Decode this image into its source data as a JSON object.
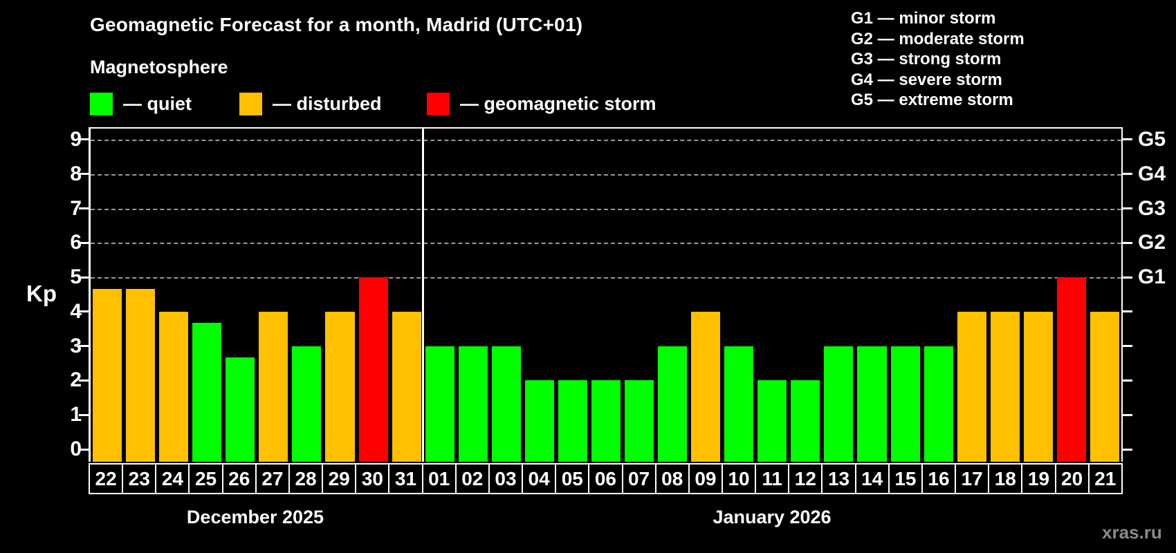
{
  "title": "Geomagnetic Forecast for a month, Madrid (UTC+01)",
  "subtitle": "Magnetosphere",
  "legend": {
    "items": [
      {
        "key": "quiet",
        "label": "— quiet",
        "color": "#00ff00"
      },
      {
        "key": "disturbed",
        "label": "— disturbed",
        "color": "#ffc000"
      },
      {
        "key": "storm",
        "label": "— geomagnetic storm",
        "color": "#ff0000"
      }
    ]
  },
  "g_legend": [
    "G1 — minor storm",
    "G2 — moderate storm",
    "G3 — strong storm",
    "G4 — severe storm",
    "G5 — extreme storm"
  ],
  "watermark": "xras.ru",
  "chart_data": {
    "type": "bar",
    "title": "Geomagnetic Forecast for a month, Madrid (UTC+01)",
    "ylabel": "Kp",
    "ylim": [
      0,
      9.4
    ],
    "yticks": [
      0,
      1,
      2,
      3,
      4,
      5,
      6,
      7,
      8,
      9
    ],
    "gridlines_at": [
      5,
      6,
      7,
      8,
      9
    ],
    "grid": true,
    "legend_position": "top-left",
    "right_axis": [
      {
        "label": "G1",
        "kp": 5
      },
      {
        "label": "G2",
        "kp": 6
      },
      {
        "label": "G3",
        "kp": 7
      },
      {
        "label": "G4",
        "kp": 8
      },
      {
        "label": "G5",
        "kp": 9
      }
    ],
    "status_colors": {
      "quiet": "#00ff00",
      "disturbed": "#ffc000",
      "storm": "#ff0000"
    },
    "months": [
      {
        "label": "December 2025",
        "days": [
          {
            "day": "22",
            "kp": 4.67,
            "status": "disturbed"
          },
          {
            "day": "23",
            "kp": 4.67,
            "status": "disturbed"
          },
          {
            "day": "24",
            "kp": 4,
            "status": "disturbed"
          },
          {
            "day": "25",
            "kp": 3.67,
            "status": "quiet"
          },
          {
            "day": "26",
            "kp": 2.67,
            "status": "quiet"
          },
          {
            "day": "27",
            "kp": 4,
            "status": "disturbed"
          },
          {
            "day": "28",
            "kp": 3,
            "status": "quiet"
          },
          {
            "day": "29",
            "kp": 4,
            "status": "disturbed"
          },
          {
            "day": "30",
            "kp": 5,
            "status": "storm"
          },
          {
            "day": "31",
            "kp": 4,
            "status": "disturbed"
          }
        ]
      },
      {
        "label": "January 2026",
        "days": [
          {
            "day": "01",
            "kp": 3,
            "status": "quiet"
          },
          {
            "day": "02",
            "kp": 3,
            "status": "quiet"
          },
          {
            "day": "03",
            "kp": 3,
            "status": "quiet"
          },
          {
            "day": "04",
            "kp": 2,
            "status": "quiet"
          },
          {
            "day": "05",
            "kp": 2,
            "status": "quiet"
          },
          {
            "day": "06",
            "kp": 2,
            "status": "quiet"
          },
          {
            "day": "07",
            "kp": 2,
            "status": "quiet"
          },
          {
            "day": "08",
            "kp": 3,
            "status": "quiet"
          },
          {
            "day": "09",
            "kp": 4,
            "status": "disturbed"
          },
          {
            "day": "10",
            "kp": 3,
            "status": "quiet"
          },
          {
            "day": "11",
            "kp": 2,
            "status": "quiet"
          },
          {
            "day": "12",
            "kp": 2,
            "status": "quiet"
          },
          {
            "day": "13",
            "kp": 3,
            "status": "quiet"
          },
          {
            "day": "14",
            "kp": 3,
            "status": "quiet"
          },
          {
            "day": "15",
            "kp": 3,
            "status": "quiet"
          },
          {
            "day": "16",
            "kp": 3,
            "status": "quiet"
          },
          {
            "day": "17",
            "kp": 4,
            "status": "disturbed"
          },
          {
            "day": "18",
            "kp": 4,
            "status": "disturbed"
          },
          {
            "day": "19",
            "kp": 4,
            "status": "disturbed"
          },
          {
            "day": "20",
            "kp": 5,
            "status": "storm"
          },
          {
            "day": "21",
            "kp": 4,
            "status": "disturbed"
          }
        ]
      }
    ]
  }
}
